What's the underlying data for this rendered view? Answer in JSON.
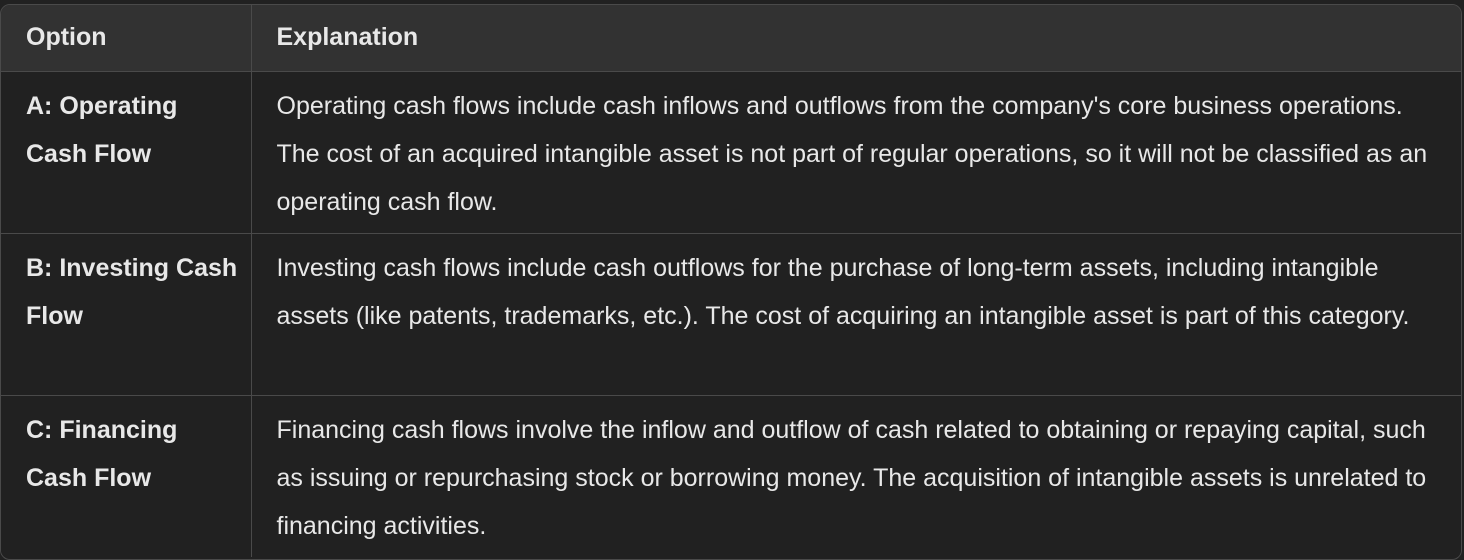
{
  "table": {
    "headers": [
      "Option",
      "Explanation"
    ],
    "rows": [
      {
        "option": "A: Operating Cash Flow",
        "explanation": "Operating cash flows include cash inflows and outflows from the company's core business operations. The cost of an acquired intangible asset is not part of regular operations, so it will not be classified as an operating cash flow."
      },
      {
        "option": "B: Investing Cash Flow",
        "explanation": "Investing cash flows include cash outflows for the purchase of long-term assets, including intangible assets (like patents, trademarks, etc.). The cost of acquiring an intangible asset is part of this category."
      },
      {
        "option": "C: Financing Cash Flow",
        "explanation": "Financing cash flows involve the inflow and outflow of cash related to obtaining or repaying capital, such as issuing or repurchasing stock or borrowing money. The acquisition of intangible assets is unrelated to financing activities."
      }
    ]
  }
}
